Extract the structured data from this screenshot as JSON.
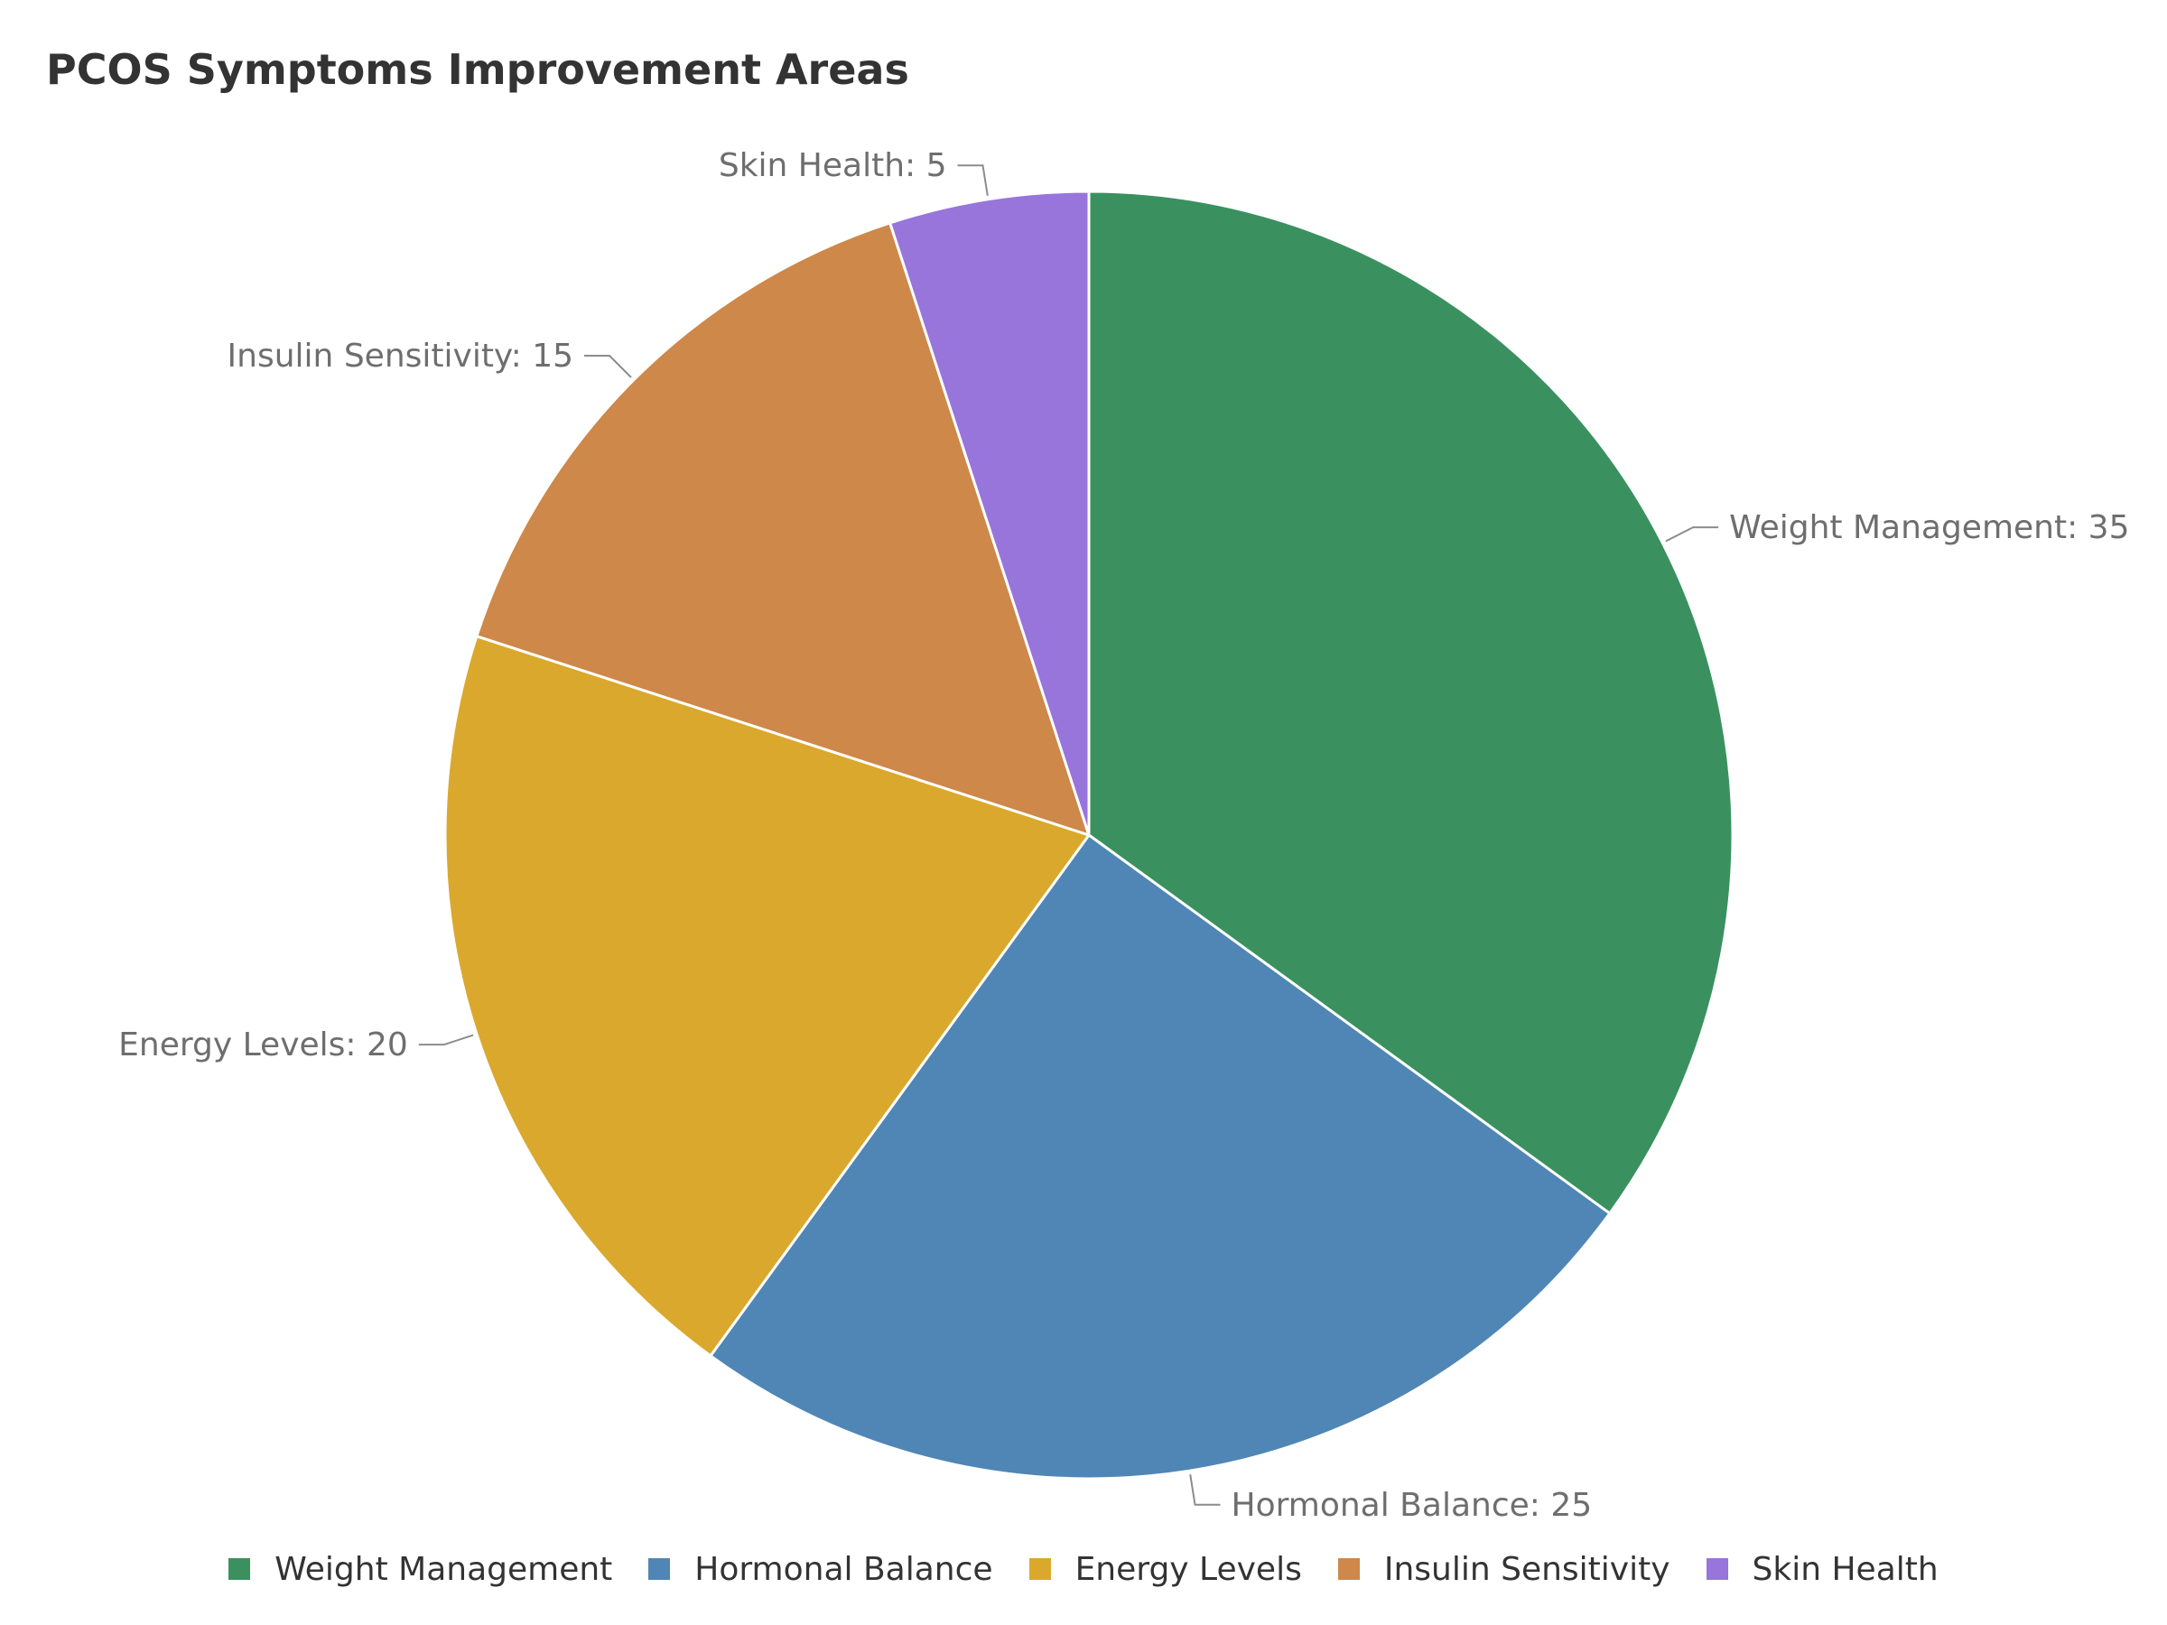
{
  "chart_data": {
    "type": "pie",
    "title": "PCOS Symptoms Improvement Areas",
    "categories": [
      "Weight Management",
      "Hormonal Balance",
      "Energy Levels",
      "Insulin Sensitivity",
      "Skin Health"
    ],
    "values": [
      35,
      25,
      20,
      15,
      5
    ],
    "colors": [
      "#3a915f",
      "#4f86b5",
      "#daa82d",
      "#cd884a",
      "#9775db"
    ],
    "slice_labels": [
      "Weight Management: 35",
      "Hormonal Balance: 25",
      "Energy Levels: 20",
      "Insulin Sensitivity: 15",
      "Skin Health: 5"
    ],
    "legend_position": "bottom"
  }
}
